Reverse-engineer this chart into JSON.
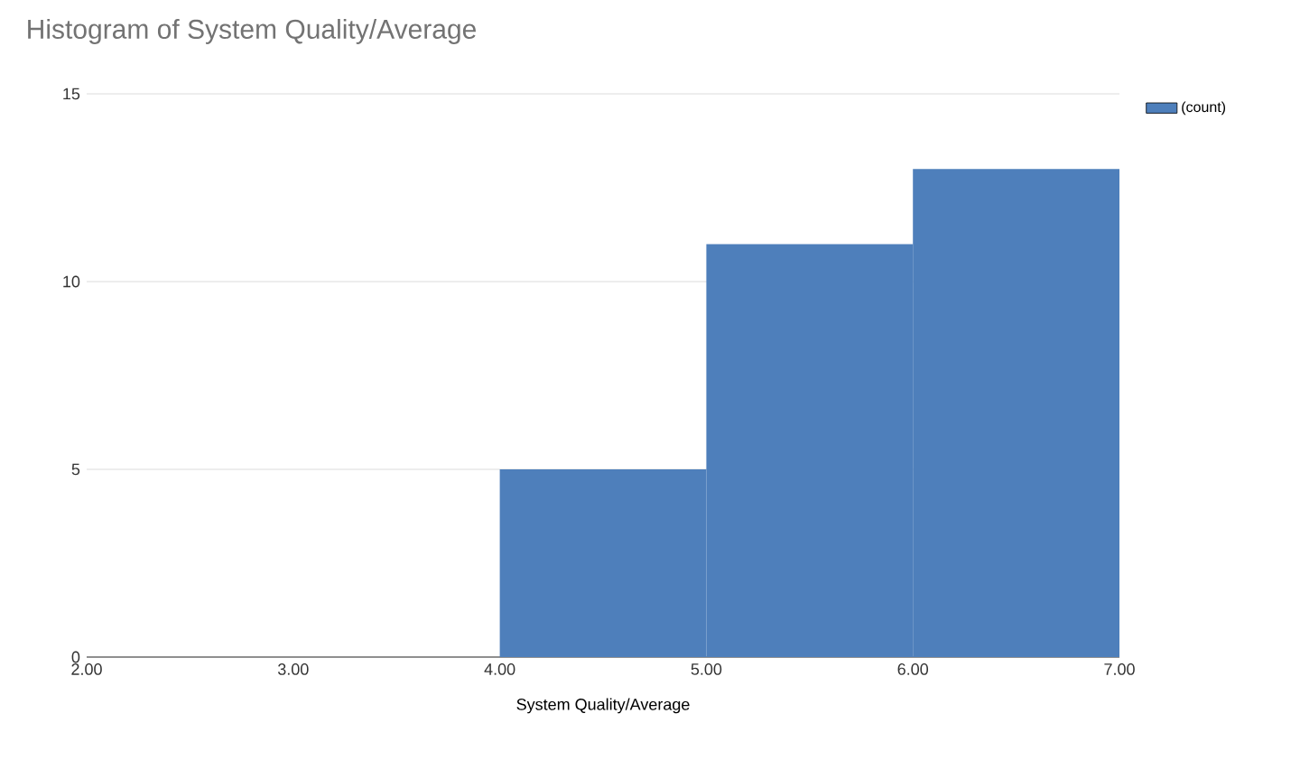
{
  "chart_data": {
    "type": "histogram",
    "title": "Histogram of System Quality/Average",
    "xlabel": "System Quality/Average",
    "bins": [
      2,
      3,
      4,
      5,
      6,
      7
    ],
    "series": [
      {
        "name": "(count)",
        "color": "#4e7fbb",
        "values": [
          0,
          0,
          5,
          11,
          13
        ]
      }
    ],
    "xlim": [
      2,
      7
    ],
    "xticks": [
      {
        "value": 2,
        "label": "2.00"
      },
      {
        "value": 3,
        "label": "3.00"
      },
      {
        "value": 4,
        "label": "4.00"
      },
      {
        "value": 5,
        "label": "5.00"
      },
      {
        "value": 6,
        "label": "6.00"
      },
      {
        "value": 7,
        "label": "7.00"
      }
    ],
    "ylim": [
      0,
      15
    ],
    "yticks": [
      0,
      5,
      10,
      15
    ],
    "grid": "y",
    "legend": "top right"
  }
}
